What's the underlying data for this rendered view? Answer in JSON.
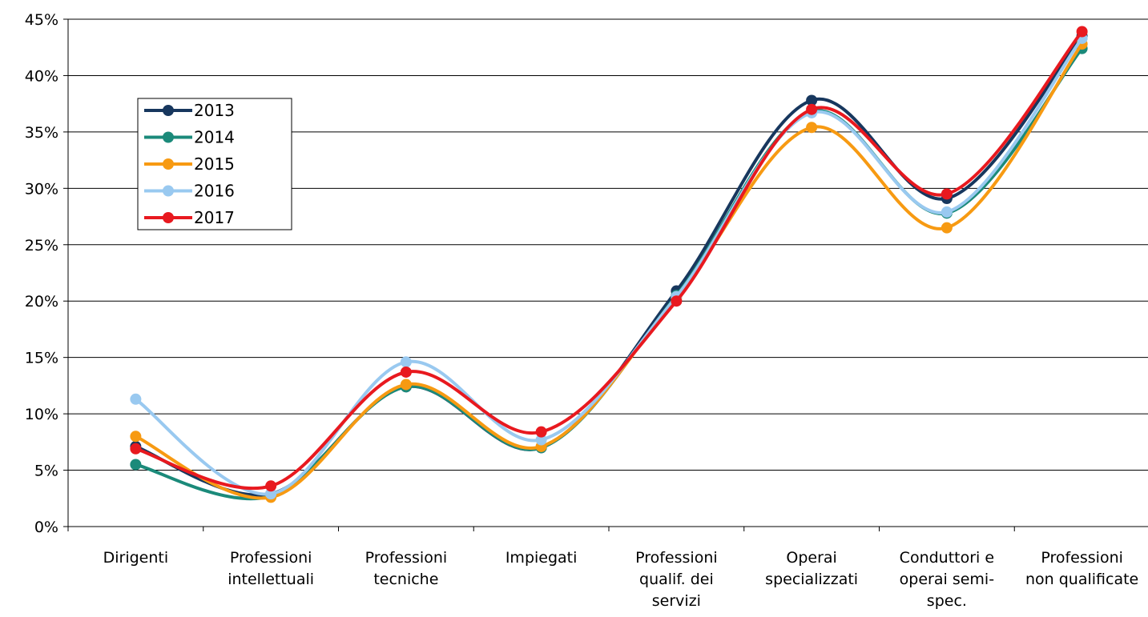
{
  "chart_data": {
    "type": "line",
    "title": "",
    "xlabel": "",
    "ylabel": "",
    "ylim": [
      0,
      45
    ],
    "y_ticks": [
      "0%",
      "5%",
      "10%",
      "15%",
      "20%",
      "25%",
      "30%",
      "35%",
      "40%",
      "45%"
    ],
    "grid": "horizontal",
    "smooth": true,
    "legend_position": "upper-left",
    "categories": [
      [
        "Dirigenti"
      ],
      [
        "Professioni",
        "intellettuali"
      ],
      [
        "Professioni",
        "tecniche"
      ],
      [
        "Impiegati"
      ],
      [
        "Professioni",
        "qualif. dei",
        "servizi"
      ],
      [
        "Operai",
        "specializzati"
      ],
      [
        "Conduttori e",
        "operai semi-",
        "spec."
      ],
      [
        "Professioni",
        "non qualificate"
      ]
    ],
    "series": [
      {
        "name": "2013",
        "color": "#17375E",
        "values": [
          7.1,
          2.9,
          12.4,
          7.0,
          20.9,
          37.8,
          29.1,
          43.5
        ]
      },
      {
        "name": "2014",
        "color": "#1B8A7A",
        "values": [
          5.5,
          2.7,
          12.4,
          7.0,
          20.5,
          36.8,
          27.8,
          42.4
        ]
      },
      {
        "name": "2015",
        "color": "#F79A12",
        "values": [
          8.0,
          2.6,
          12.6,
          7.1,
          20.3,
          35.4,
          26.5,
          42.8
        ]
      },
      {
        "name": "2016",
        "color": "#99C9F0",
        "values": [
          11.3,
          2.9,
          14.6,
          7.7,
          20.4,
          36.7,
          27.9,
          43.3
        ]
      },
      {
        "name": "2017",
        "color": "#E8191F",
        "values": [
          6.9,
          3.6,
          13.7,
          8.4,
          20.0,
          37.0,
          29.5,
          43.9
        ]
      }
    ]
  }
}
